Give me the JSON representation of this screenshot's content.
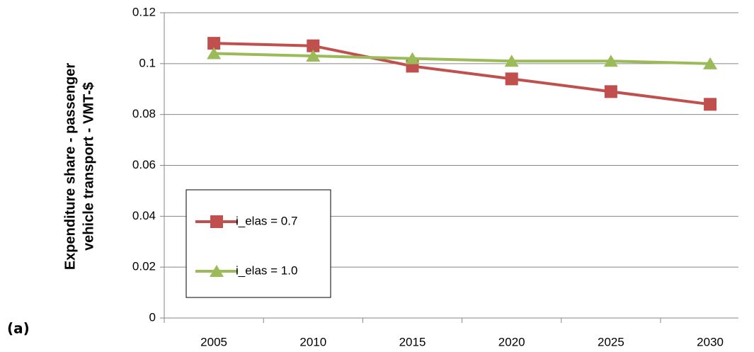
{
  "chart_data": {
    "type": "line",
    "y_label": [
      "Expenditure share - passenger",
      "vehicle transport - VMT-$"
    ],
    "annotation": "(a)",
    "categories": [
      "2005",
      "2010",
      "2015",
      "2020",
      "2025",
      "2030"
    ],
    "series": [
      {
        "name": "i_elas = 0.7",
        "color": "#c0504d",
        "marker": "square",
        "values": [
          0.108,
          0.107,
          0.099,
          0.094,
          0.089,
          0.084
        ]
      },
      {
        "name": "i_elas = 1.0",
        "color": "#9bbb59",
        "marker": "triangle",
        "values": [
          0.104,
          0.103,
          0.102,
          0.101,
          0.101,
          0.1
        ]
      }
    ],
    "ylim": [
      0,
      0.12
    ],
    "yticks": [
      0,
      0.02,
      0.04,
      0.06,
      0.08,
      0.1,
      0.12
    ],
    "grid": true,
    "legend": "lower left"
  }
}
